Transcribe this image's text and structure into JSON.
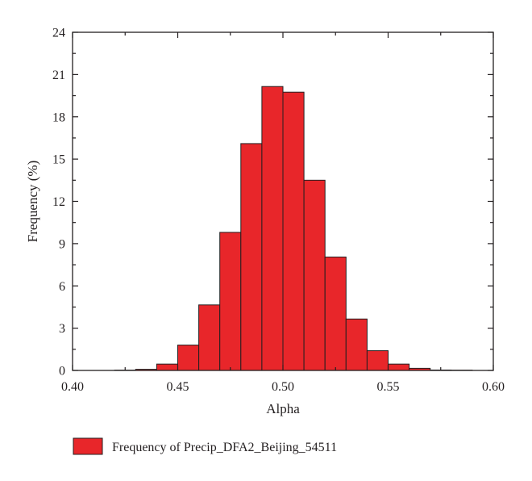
{
  "chart_data": {
    "type": "bar",
    "xlabel": "Alpha",
    "ylabel": "Frequency (%)",
    "xlim": [
      0.4,
      0.6
    ],
    "ylim": [
      0,
      24
    ],
    "xticks": [
      "0.40",
      "0.45",
      "0.50",
      "0.55",
      "0.60"
    ],
    "yticks": [
      "0",
      "3",
      "6",
      "9",
      "12",
      "15",
      "18",
      "21",
      "24"
    ],
    "bin_width": 0.01,
    "grid": false,
    "legend_position": "bottom",
    "series": [
      {
        "name": "Frequency of Precip_DFA2_Beijing_54511",
        "color": "#e8262a",
        "bins": [
          {
            "x0": 0.42,
            "x1": 0.43,
            "value": 0.02
          },
          {
            "x0": 0.43,
            "x1": 0.44,
            "value": 0.08
          },
          {
            "x0": 0.44,
            "x1": 0.45,
            "value": 0.45
          },
          {
            "x0": 0.45,
            "x1": 0.46,
            "value": 1.8
          },
          {
            "x0": 0.46,
            "x1": 0.47,
            "value": 4.65
          },
          {
            "x0": 0.47,
            "x1": 0.48,
            "value": 9.8
          },
          {
            "x0": 0.48,
            "x1": 0.49,
            "value": 16.1
          },
          {
            "x0": 0.49,
            "x1": 0.5,
            "value": 20.15
          },
          {
            "x0": 0.5,
            "x1": 0.51,
            "value": 19.75
          },
          {
            "x0": 0.51,
            "x1": 0.52,
            "value": 13.5
          },
          {
            "x0": 0.52,
            "x1": 0.53,
            "value": 8.05
          },
          {
            "x0": 0.53,
            "x1": 0.54,
            "value": 3.65
          },
          {
            "x0": 0.54,
            "x1": 0.55,
            "value": 1.4
          },
          {
            "x0": 0.55,
            "x1": 0.56,
            "value": 0.45
          },
          {
            "x0": 0.56,
            "x1": 0.57,
            "value": 0.15
          },
          {
            "x0": 0.57,
            "x1": 0.58,
            "value": 0.03
          },
          {
            "x0": 0.58,
            "x1": 0.59,
            "value": 0.02
          }
        ]
      }
    ]
  }
}
